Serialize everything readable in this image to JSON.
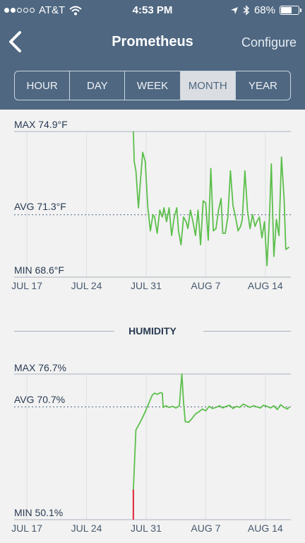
{
  "status_bar": {
    "carrier": "AT&T",
    "time": "4:53 PM",
    "battery_percent": "68%",
    "battery_level": 0.68,
    "signal_bars_filled": 2,
    "signal_bars_total": 5
  },
  "nav": {
    "title": "Prometheus",
    "configure_label": "Configure"
  },
  "range_tabs": [
    {
      "label": "HOUR",
      "active": false
    },
    {
      "label": "DAY",
      "active": false
    },
    {
      "label": "WEEK",
      "active": false
    },
    {
      "label": "MONTH",
      "active": true
    },
    {
      "label": "YEAR",
      "active": false
    }
  ],
  "colors": {
    "header": "#4f6781",
    "line_green": "#5cbf4c",
    "line_red": "#e0243b",
    "text_dark": "#283a52"
  },
  "temperature": {
    "max_label": "MAX 74.9°F",
    "avg_label": "AVG 71.3°F",
    "min_label": "MIN 68.6°F"
  },
  "humidity": {
    "section_title": "HUMIDITY",
    "max_label": "MAX 76.7%",
    "avg_label": "AVG 70.7%",
    "min_label": "MIN 50.1%"
  },
  "chart_data": [
    {
      "type": "line",
      "ylim": [
        68.6,
        74.9
      ],
      "average": 71.3,
      "x_ticks": [
        "JUL 17",
        "JUL 24",
        "JUL 31",
        "AUG 7",
        "AUG 14"
      ],
      "xlim": [
        -1.5,
        31
      ],
      "series": [
        {
          "x": [
            12.5,
            12.6,
            12.8,
            13.1,
            13.3,
            13.6,
            13.9,
            14.2,
            14.5,
            14.8,
            15.0,
            15.3,
            15.6,
            15.9,
            16.1,
            16.4,
            16.7,
            17.0,
            17.3,
            17.6,
            17.8,
            18.1,
            18.4,
            18.7,
            18.9,
            19.2,
            19.5,
            19.8,
            20.1,
            20.4,
            20.7,
            21.0,
            21.3,
            21.6,
            21.9,
            22.2,
            22.5,
            22.8,
            23.0,
            23.3,
            23.6,
            23.9,
            24.2,
            24.5,
            24.8,
            25.1,
            25.3,
            25.6,
            25.9,
            26.2,
            26.5,
            26.8,
            27.0,
            27.3,
            27.6,
            27.9,
            28.2,
            28.5,
            28.7,
            29.0,
            29.3,
            29.6,
            29.9,
            30.2,
            30.4,
            30.8
          ],
          "y": [
            74.9,
            73.6,
            73.2,
            71.6,
            72.6,
            74.0,
            73.6,
            71.6,
            70.6,
            71.3,
            71.2,
            70.5,
            71.5,
            71.2,
            71.6,
            71.0,
            71.6,
            70.4,
            71.2,
            71.6,
            70.6,
            70.0,
            71.2,
            71.0,
            70.7,
            71.5,
            71.0,
            70.4,
            71.5,
            70.0,
            71.9,
            71.8,
            70.2,
            73.3,
            70.6,
            70.7,
            71.5,
            72.0,
            70.5,
            70.5,
            71.2,
            73.2,
            71.7,
            71.2,
            70.6,
            70.8,
            71.1,
            73.2,
            71.5,
            70.7,
            71.3,
            70.8,
            71.0,
            71.2,
            70.3,
            71.0,
            69.1,
            71.3,
            73.5,
            69.5,
            71.1,
            70.4,
            73.8,
            72.0,
            69.8,
            69.9
          ]
        }
      ]
    },
    {
      "type": "line",
      "ylim": [
        50.1,
        76.7
      ],
      "average": 70.7,
      "x_ticks": [
        "JUL 17",
        "JUL 24",
        "JUL 31",
        "AUG 7",
        "AUG 14"
      ],
      "xlim": [
        -1.5,
        31
      ],
      "series": [
        {
          "name": "",
          "x": [
            12.5,
            12.5,
            12.8,
            13.1,
            13.5,
            13.9,
            14.3,
            14.7,
            15.0,
            15.3,
            15.7,
            15.9,
            16.0,
            16.3,
            16.7,
            17.1,
            17.5,
            17.9,
            18.2,
            18.4,
            18.6,
            19.0,
            19.4,
            19.8,
            20.2,
            20.6,
            21.0,
            21.4,
            21.8,
            22.2,
            22.6,
            23.0,
            23.4,
            23.8,
            24.2,
            24.6,
            25.0,
            25.4,
            25.8,
            26.2,
            26.6,
            27.0,
            27.4,
            27.8,
            28.2,
            28.6,
            29.0,
            29.4,
            29.8,
            30.2,
            30.6,
            30.8
          ],
          "y": [
            50.1,
            55.6,
            66.5,
            67.3,
            68.5,
            69.8,
            71.3,
            72.8,
            73.2,
            73.0,
            73.3,
            73.2,
            70.6,
            70.9,
            70.6,
            70.8,
            70.5,
            70.9,
            76.7,
            71.5,
            68.0,
            67.9,
            68.6,
            69.4,
            69.8,
            70.3,
            70.0,
            70.8,
            70.4,
            70.6,
            70.9,
            70.5,
            70.8,
            71.0,
            70.4,
            70.8,
            70.6,
            71.2,
            70.9,
            70.6,
            70.9,
            70.7,
            70.5,
            71.0,
            70.8,
            70.5,
            70.9,
            70.2,
            71.1,
            70.6,
            70.3,
            70.7
          ]
        }
      ]
    }
  ]
}
